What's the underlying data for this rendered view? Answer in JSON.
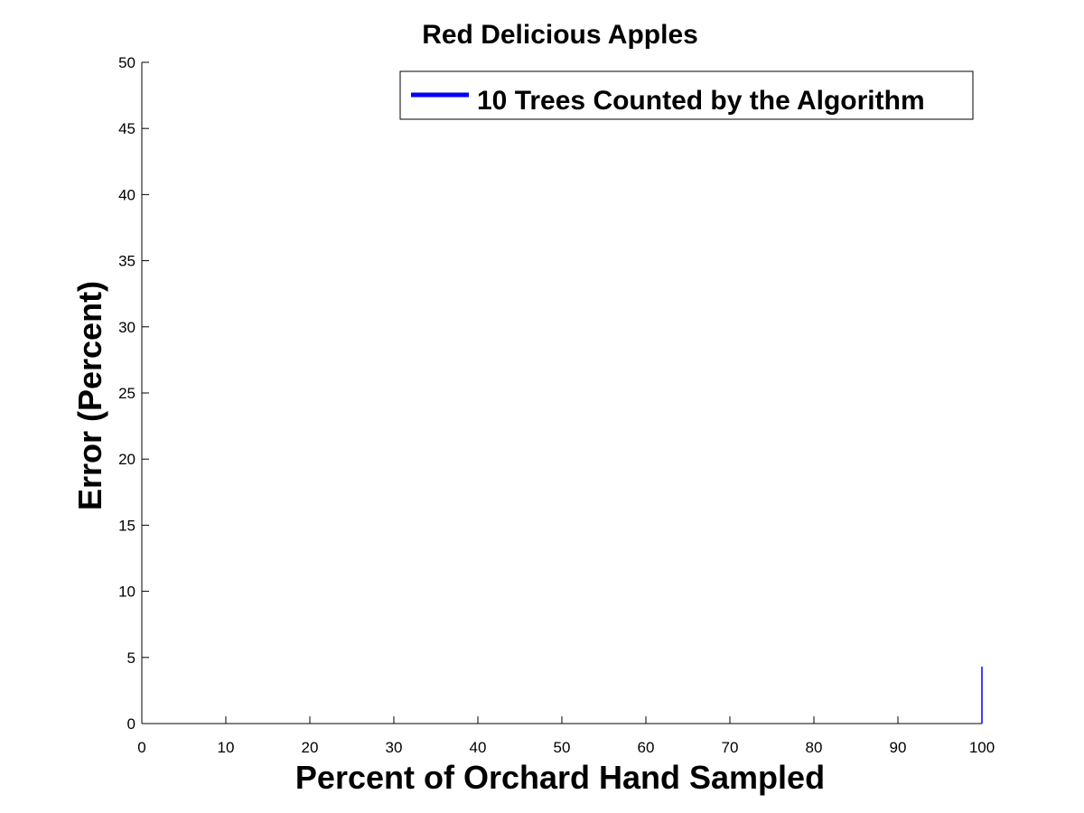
{
  "chart_data": {
    "type": "line",
    "title": "Red Delicious Apples",
    "xlabel": "Percent of Orchard Hand Sampled",
    "ylabel": "Error (Percent)",
    "xlim": [
      0,
      100
    ],
    "ylim": [
      0,
      50
    ],
    "xticks": [
      0,
      10,
      20,
      30,
      40,
      50,
      60,
      70,
      80,
      90,
      100
    ],
    "yticks": [
      0,
      5,
      10,
      15,
      20,
      25,
      30,
      35,
      40,
      45,
      50
    ],
    "grid": false,
    "legend_position": "top-right",
    "series": [
      {
        "name": "10 Trees Counted by the Algorithm",
        "color": "#0000ff",
        "x": [
          100,
          100
        ],
        "y": [
          0,
          4.3
        ]
      }
    ]
  }
}
